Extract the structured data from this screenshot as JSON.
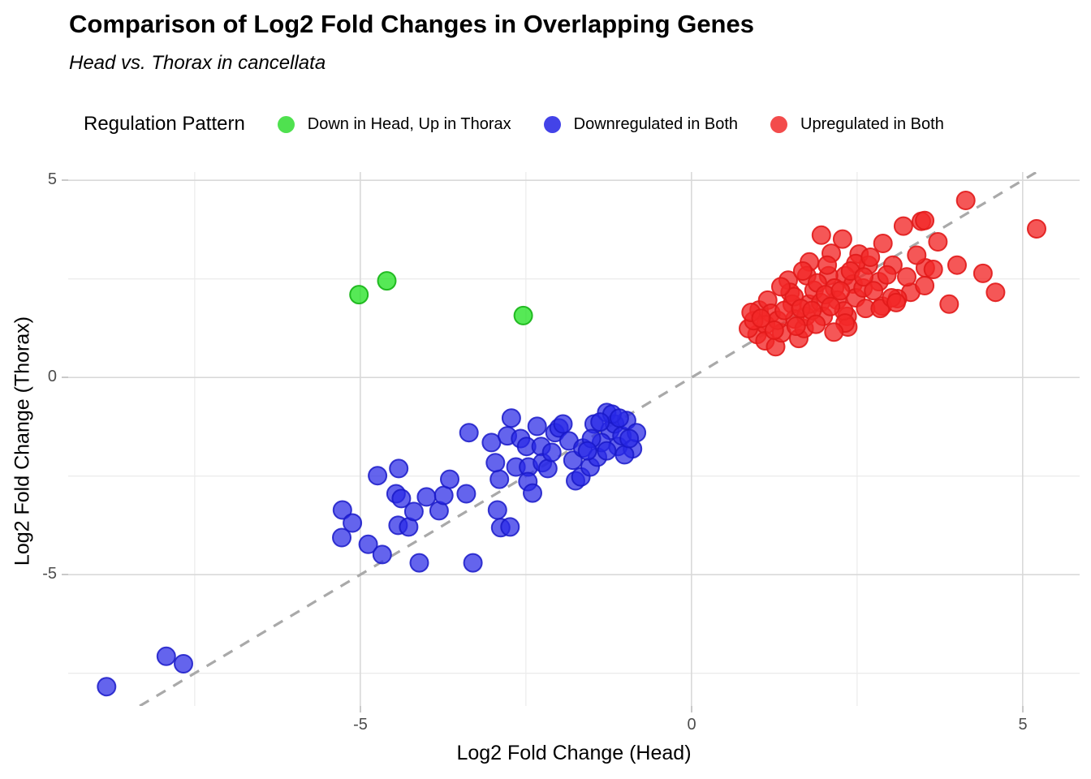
{
  "title": "Comparison of Log2 Fold Changes in Overlapping Genes",
  "subtitle": "Head vs. Thorax in cancellata",
  "legend": {
    "title": "Regulation Pattern",
    "items": [
      {
        "label": "Down in Head, Up in Thorax",
        "color": "#4fe14f"
      },
      {
        "label": "Downregulated in Both",
        "color": "#4343e8"
      },
      {
        "label": "Upregulated in Both",
        "color": "#f34c4c"
      }
    ]
  },
  "style": {
    "grid_minor": "#ececec",
    "grid_major": "#d9d9d9",
    "tick_mark": "#c9c9c9",
    "tick_label": "#4d4d4d",
    "reference_line": "#a9a9a9",
    "panel_background": "#ffffff"
  },
  "chart_data": {
    "type": "scatter",
    "title": "Comparison of Log2 Fold Changes in Overlapping Genes",
    "subtitle": "Head vs. Thorax in cancellata",
    "xlabel": "Log2 Fold Change (Head)",
    "ylabel": "Log2 Fold Change (Thorax)",
    "xlim": [
      -9.41,
      5.86
    ],
    "ylim": [
      -8.33,
      5.21
    ],
    "x_major_ticks": [
      -5,
      0,
      5
    ],
    "y_major_ticks": [
      5,
      0,
      -5
    ],
    "x_minor_gridlines": [
      -7.5,
      -2.5,
      2.5
    ],
    "y_minor_gridlines": [
      2.5,
      -2.5,
      -7.5
    ],
    "grid": true,
    "legend_position": "top",
    "reference_line": {
      "type": "identity y=x",
      "style": "dashed",
      "color": "#a9a9a9"
    },
    "point_radius": 11,
    "series": [
      {
        "name": "Down in Head, Up in Thorax",
        "fill": "rgba(30,225,30,0.75)",
        "stroke": "rgba(20,180,20,0.9)",
        "points": [
          [
            -5.02,
            2.1
          ],
          [
            -4.6,
            2.45
          ],
          [
            -2.54,
            1.57
          ]
        ]
      },
      {
        "name": "Downregulated in Both",
        "fill": "rgba(40,40,230,0.72)",
        "stroke": "rgba(25,25,200,0.85)",
        "points": [
          [
            -8.83,
            -7.84
          ],
          [
            -7.93,
            -7.07
          ],
          [
            -7.67,
            -7.26
          ],
          [
            -5.27,
            -3.36
          ],
          [
            -5.12,
            -3.69
          ],
          [
            -5.28,
            -4.06
          ],
          [
            -4.88,
            -4.23
          ],
          [
            -4.67,
            -4.49
          ],
          [
            -4.74,
            -2.49
          ],
          [
            -4.42,
            -2.31
          ],
          [
            -4.46,
            -2.95
          ],
          [
            -4.38,
            -3.07
          ],
          [
            -4.43,
            -3.75
          ],
          [
            -4.27,
            -3.79
          ],
          [
            -4.19,
            -3.4
          ],
          [
            -4.11,
            -4.7
          ],
          [
            -4.0,
            -3.03
          ],
          [
            -3.81,
            -3.38
          ],
          [
            -3.74,
            -2.99
          ],
          [
            -3.65,
            -2.58
          ],
          [
            -3.36,
            -1.4
          ],
          [
            -3.4,
            -2.95
          ],
          [
            -3.3,
            -4.7
          ],
          [
            -3.02,
            -1.65
          ],
          [
            -2.9,
            -2.58
          ],
          [
            -2.96,
            -2.16
          ],
          [
            -2.93,
            -3.36
          ],
          [
            -2.88,
            -3.81
          ],
          [
            -2.72,
            -1.03
          ],
          [
            -2.78,
            -1.48
          ],
          [
            -2.74,
            -3.79
          ],
          [
            -2.65,
            -2.27
          ],
          [
            -2.58,
            -1.55
          ],
          [
            -2.49,
            -1.75
          ],
          [
            -2.46,
            -2.27
          ],
          [
            -2.47,
            -2.64
          ],
          [
            -2.4,
            -2.93
          ],
          [
            -2.33,
            -1.24
          ],
          [
            -2.27,
            -1.75
          ],
          [
            -2.25,
            -2.16
          ],
          [
            -2.17,
            -2.31
          ],
          [
            -2.11,
            -1.9
          ],
          [
            -2.06,
            -1.4
          ],
          [
            -2.0,
            -1.28
          ],
          [
            -1.94,
            -1.18
          ],
          [
            -1.85,
            -1.61
          ],
          [
            -1.79,
            -2.1
          ],
          [
            -1.75,
            -2.62
          ],
          [
            -1.67,
            -2.52
          ],
          [
            -1.64,
            -1.79
          ],
          [
            -1.53,
            -2.27
          ],
          [
            -1.47,
            -1.18
          ],
          [
            -1.42,
            -2.02
          ],
          [
            -1.28,
            -0.89
          ],
          [
            -1.23,
            -1.34
          ],
          [
            -1.16,
            -1.18
          ],
          [
            -1.11,
            -1.75
          ],
          [
            -1.05,
            -1.48
          ],
          [
            -0.98,
            -1.09
          ],
          [
            -0.89,
            -1.81
          ],
          [
            -0.83,
            -1.4
          ],
          [
            -1.36,
            -1.65
          ],
          [
            -1.2,
            -0.93
          ],
          [
            -1.01,
            -1.96
          ],
          [
            -0.94,
            -1.55
          ],
          [
            -1.09,
            -1.03
          ],
          [
            -1.28,
            -1.86
          ],
          [
            -1.51,
            -1.55
          ],
          [
            -1.57,
            -1.86
          ],
          [
            -1.38,
            -1.13
          ]
        ]
      },
      {
        "name": "Upregulated in Both",
        "fill": "rgba(242,40,40,0.78)",
        "stroke": "rgba(225,25,25,0.9)",
        "points": [
          [
            4.14,
            4.49
          ],
          [
            3.47,
            3.96
          ],
          [
            3.52,
            3.98
          ],
          [
            3.2,
            3.84
          ],
          [
            5.21,
            3.77
          ],
          [
            3.72,
            3.44
          ],
          [
            1.96,
            3.61
          ],
          [
            2.28,
            3.51
          ],
          [
            2.89,
            3.4
          ],
          [
            2.11,
            3.15
          ],
          [
            1.78,
            2.93
          ],
          [
            2.53,
            3.13
          ],
          [
            3.04,
            2.85
          ],
          [
            4.01,
            2.85
          ],
          [
            3.53,
            2.78
          ],
          [
            3.65,
            2.74
          ],
          [
            4.4,
            2.64
          ],
          [
            4.59,
            2.16
          ],
          [
            3.89,
            1.86
          ],
          [
            3.31,
            2.16
          ],
          [
            3.52,
            2.33
          ],
          [
            3.11,
            2.0
          ],
          [
            2.88,
            1.81
          ],
          [
            2.83,
            2.43
          ],
          [
            2.67,
            2.85
          ],
          [
            2.48,
            2.89
          ],
          [
            2.32,
            2.58
          ],
          [
            2.35,
            1.55
          ],
          [
            2.36,
            1.28
          ],
          [
            1.02,
            1.71
          ],
          [
            0.99,
            1.09
          ],
          [
            1.15,
            1.96
          ],
          [
            1.2,
            1.63
          ],
          [
            1.12,
            1.34
          ],
          [
            1.11,
            0.93
          ],
          [
            1.27,
            0.78
          ],
          [
            1.36,
            1.13
          ],
          [
            1.46,
            2.47
          ],
          [
            1.49,
            2.16
          ],
          [
            1.52,
            1.86
          ],
          [
            1.56,
            1.48
          ],
          [
            1.62,
            0.99
          ],
          [
            1.7,
            1.24
          ],
          [
            1.73,
            1.55
          ],
          [
            1.77,
            1.86
          ],
          [
            1.74,
            2.58
          ],
          [
            1.85,
            2.21
          ],
          [
            1.95,
            1.9
          ],
          [
            1.99,
            1.55
          ],
          [
            2.07,
            2.58
          ],
          [
            2.16,
            2.27
          ],
          [
            2.2,
            1.96
          ],
          [
            2.3,
            1.69
          ],
          [
            2.32,
            1.38
          ],
          [
            2.44,
            2.37
          ],
          [
            2.48,
            2.02
          ],
          [
            2.59,
            2.27
          ],
          [
            2.63,
            1.75
          ],
          [
            2.85,
            1.75
          ],
          [
            3.02,
            2.02
          ],
          [
            3.09,
            1.9
          ],
          [
            0.86,
            1.24
          ],
          [
            0.94,
            1.44
          ],
          [
            0.9,
            1.65
          ],
          [
            1.3,
            1.45
          ],
          [
            1.4,
            1.7
          ],
          [
            1.55,
            2.05
          ],
          [
            1.65,
            1.75
          ],
          [
            1.82,
            1.7
          ],
          [
            1.9,
            2.4
          ],
          [
            2.02,
            2.1
          ],
          [
            2.1,
            1.8
          ],
          [
            1.25,
            1.2
          ],
          [
            1.05,
            1.5
          ],
          [
            1.35,
            2.3
          ],
          [
            1.58,
            1.3
          ],
          [
            1.88,
            1.35
          ],
          [
            2.25,
            2.2
          ],
          [
            2.4,
            2.7
          ],
          [
            2.6,
            2.55
          ],
          [
            2.75,
            2.2
          ],
          [
            2.95,
            2.6
          ],
          [
            3.25,
            2.55
          ],
          [
            3.4,
            3.1
          ],
          [
            2.7,
            3.05
          ],
          [
            2.05,
            2.85
          ],
          [
            1.68,
            2.7
          ],
          [
            2.15,
            1.15
          ]
        ]
      }
    ]
  }
}
